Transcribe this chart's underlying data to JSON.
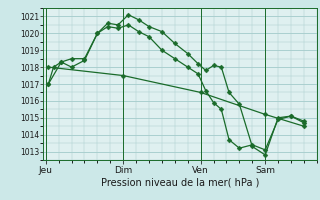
{
  "xlabel": "Pression niveau de la mer( hPa )",
  "bg_color": "#cce8e8",
  "plot_bg_color": "#dff0f0",
  "grid_color": "#aacfcf",
  "line_color": "#1a6b2a",
  "ylim": [
    1012.5,
    1021.5
  ],
  "yticks": [
    1013,
    1014,
    1015,
    1016,
    1017,
    1018,
    1019,
    1020,
    1021
  ],
  "x_day_labels": [
    {
      "label": "Jeu",
      "x": 0.0
    },
    {
      "label": "Dim",
      "x": 3.0
    },
    {
      "label": "Ven",
      "x": 6.0
    },
    {
      "label": "Sam",
      "x": 8.5
    }
  ],
  "xlim": [
    -0.1,
    10.5
  ],
  "series": [
    {
      "x": [
        0.1,
        0.3,
        0.6,
        1.0,
        1.5,
        2.0,
        2.4,
        2.8,
        3.2,
        3.6,
        4.0,
        4.5,
        5.0,
        5.5,
        5.9,
        6.2,
        6.5,
        6.8,
        7.1,
        7.5,
        8.0,
        8.5,
        9.0,
        9.5,
        10.0
      ],
      "y": [
        1017.0,
        1018.0,
        1018.3,
        1018.5,
        1018.5,
        1020.0,
        1020.6,
        1020.5,
        1021.1,
        1020.8,
        1020.4,
        1020.1,
        1019.4,
        1018.8,
        1018.2,
        1017.8,
        1018.1,
        1018.0,
        1016.5,
        1015.8,
        1013.3,
        1012.8,
        1015.0,
        1015.1,
        1014.7
      ]
    },
    {
      "x": [
        0.1,
        0.6,
        1.0,
        1.5,
        2.0,
        2.4,
        2.8,
        3.2,
        3.6,
        4.0,
        4.5,
        5.0,
        5.5,
        5.9,
        6.2,
        6.5,
        6.8,
        7.1,
        7.5,
        8.0,
        8.5,
        9.0,
        9.5,
        10.0
      ],
      "y": [
        1017.0,
        1018.3,
        1018.0,
        1018.4,
        1020.0,
        1020.4,
        1020.3,
        1020.5,
        1020.1,
        1019.8,
        1019.0,
        1018.5,
        1018.0,
        1017.6,
        1016.6,
        1015.9,
        1015.5,
        1013.7,
        1013.2,
        1013.4,
        1013.1,
        1014.9,
        1015.1,
        1014.8
      ]
    },
    {
      "x": [
        0.1,
        3.0,
        6.0,
        8.5,
        10.0
      ],
      "y": [
        1018.0,
        1017.5,
        1016.5,
        1015.2,
        1014.5
      ]
    }
  ],
  "vlines_x": [
    0.0,
    3.0,
    6.0,
    8.5
  ],
  "marker": "D",
  "markersize": 2.5,
  "linewidth": 0.9
}
